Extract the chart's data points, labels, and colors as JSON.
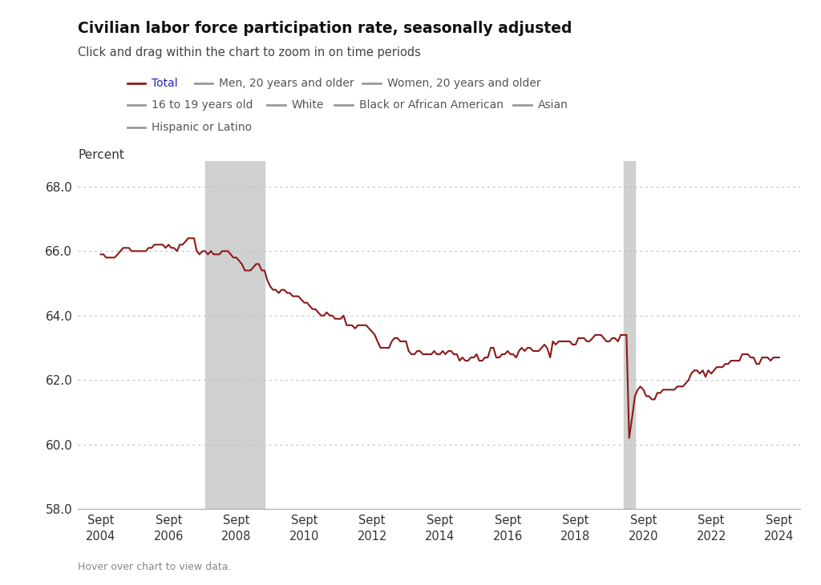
{
  "title": "Civilian labor force participation rate, seasonally adjusted",
  "subtitle": "Click and drag within the chart to zoom in on time periods",
  "ylabel": "Percent",
  "footer": "Hover over chart to view data.",
  "background_color": "#ffffff",
  "plot_bg_color": "#ffffff",
  "line_color": "#8B1A1A",
  "recession1_start": 2007.75,
  "recession1_end": 2009.5,
  "recession2_start": 2020.08,
  "recession2_end": 2020.42,
  "recession_color": "#d0d0d0",
  "ylim": [
    58.0,
    68.8
  ],
  "yticks": [
    58.0,
    60.0,
    62.0,
    64.0,
    66.0,
    68.0
  ],
  "xtick_labels": [
    "Sept\n2004",
    "Sept\n2006",
    "Sept\n2008",
    "Sept\n2010",
    "Sept\n2012",
    "Sept\n2014",
    "Sept\n2016",
    "Sept\n2018",
    "Sept\n2020",
    "Sept\n2022",
    "Sept\n2024"
  ],
  "xtick_positions": [
    2004.67,
    2006.67,
    2008.67,
    2010.67,
    2012.67,
    2014.67,
    2016.67,
    2018.67,
    2020.67,
    2022.67,
    2024.67
  ],
  "xlim": [
    2004.0,
    2025.3
  ],
  "legend_row1": [
    {
      "label": "Total",
      "color": "#8B1A1A",
      "label_color": "#2222bb"
    },
    {
      "label": "Men, 20 years and older",
      "color": "#999999",
      "label_color": "#555555"
    },
    {
      "label": "Women, 20 years and older",
      "color": "#999999",
      "label_color": "#555555"
    }
  ],
  "legend_row2": [
    {
      "label": "16 to 19 years old",
      "color": "#999999",
      "label_color": "#555555"
    },
    {
      "label": "White",
      "color": "#999999",
      "label_color": "#555555"
    },
    {
      "label": "Black or African American",
      "color": "#999999",
      "label_color": "#555555"
    },
    {
      "label": "Asian",
      "color": "#999999",
      "label_color": "#555555"
    }
  ],
  "legend_row3": [
    {
      "label": "Hispanic or Latino",
      "color": "#999999",
      "label_color": "#555555"
    }
  ],
  "data": {
    "dates": [
      2004.67,
      2004.75,
      2004.83,
      2004.92,
      2005.0,
      2005.08,
      2005.17,
      2005.25,
      2005.33,
      2005.42,
      2005.5,
      2005.58,
      2005.67,
      2005.75,
      2005.83,
      2005.92,
      2006.0,
      2006.08,
      2006.17,
      2006.25,
      2006.33,
      2006.42,
      2006.5,
      2006.58,
      2006.67,
      2006.75,
      2006.83,
      2006.92,
      2007.0,
      2007.08,
      2007.17,
      2007.25,
      2007.33,
      2007.42,
      2007.5,
      2007.58,
      2007.67,
      2007.75,
      2007.83,
      2007.92,
      2008.0,
      2008.08,
      2008.17,
      2008.25,
      2008.33,
      2008.42,
      2008.5,
      2008.58,
      2008.67,
      2008.75,
      2008.83,
      2008.92,
      2009.0,
      2009.08,
      2009.17,
      2009.25,
      2009.33,
      2009.42,
      2009.5,
      2009.58,
      2009.67,
      2009.75,
      2009.83,
      2009.92,
      2010.0,
      2010.08,
      2010.17,
      2010.25,
      2010.33,
      2010.42,
      2010.5,
      2010.58,
      2010.67,
      2010.75,
      2010.83,
      2010.92,
      2011.0,
      2011.08,
      2011.17,
      2011.25,
      2011.33,
      2011.42,
      2011.5,
      2011.58,
      2011.67,
      2011.75,
      2011.83,
      2011.92,
      2012.0,
      2012.08,
      2012.17,
      2012.25,
      2012.33,
      2012.42,
      2012.5,
      2012.58,
      2012.67,
      2012.75,
      2012.83,
      2012.92,
      2013.0,
      2013.08,
      2013.17,
      2013.25,
      2013.33,
      2013.42,
      2013.5,
      2013.58,
      2013.67,
      2013.75,
      2013.83,
      2013.92,
      2014.0,
      2014.08,
      2014.17,
      2014.25,
      2014.33,
      2014.42,
      2014.5,
      2014.58,
      2014.67,
      2014.75,
      2014.83,
      2014.92,
      2015.0,
      2015.08,
      2015.17,
      2015.25,
      2015.33,
      2015.42,
      2015.5,
      2015.58,
      2015.67,
      2015.75,
      2015.83,
      2015.92,
      2016.0,
      2016.08,
      2016.17,
      2016.25,
      2016.33,
      2016.42,
      2016.5,
      2016.58,
      2016.67,
      2016.75,
      2016.83,
      2016.92,
      2017.0,
      2017.08,
      2017.17,
      2017.25,
      2017.33,
      2017.42,
      2017.5,
      2017.58,
      2017.67,
      2017.75,
      2017.83,
      2017.92,
      2018.0,
      2018.08,
      2018.17,
      2018.25,
      2018.33,
      2018.42,
      2018.5,
      2018.58,
      2018.67,
      2018.75,
      2018.83,
      2018.92,
      2019.0,
      2019.08,
      2019.17,
      2019.25,
      2019.33,
      2019.42,
      2019.5,
      2019.58,
      2019.67,
      2019.75,
      2019.83,
      2019.92,
      2020.0,
      2020.08,
      2020.17,
      2020.25,
      2020.33,
      2020.42,
      2020.5,
      2020.58,
      2020.67,
      2020.75,
      2020.83,
      2020.92,
      2021.0,
      2021.08,
      2021.17,
      2021.25,
      2021.33,
      2021.42,
      2021.5,
      2021.58,
      2021.67,
      2021.75,
      2021.83,
      2021.92,
      2022.0,
      2022.08,
      2022.17,
      2022.25,
      2022.33,
      2022.42,
      2022.5,
      2022.58,
      2022.67,
      2022.75,
      2022.83,
      2022.92,
      2023.0,
      2023.08,
      2023.17,
      2023.25,
      2023.33,
      2023.42,
      2023.5,
      2023.58,
      2023.67,
      2023.75,
      2023.83,
      2023.92,
      2024.0,
      2024.08,
      2024.17,
      2024.25,
      2024.33,
      2024.42,
      2024.5,
      2024.67
    ],
    "values": [
      65.9,
      65.9,
      65.8,
      65.8,
      65.8,
      65.8,
      65.9,
      66.0,
      66.1,
      66.1,
      66.1,
      66.0,
      66.0,
      66.0,
      66.0,
      66.0,
      66.0,
      66.1,
      66.1,
      66.2,
      66.2,
      66.2,
      66.2,
      66.1,
      66.2,
      66.1,
      66.1,
      66.0,
      66.2,
      66.2,
      66.3,
      66.4,
      66.4,
      66.4,
      66.0,
      65.9,
      66.0,
      66.0,
      65.9,
      66.0,
      65.9,
      65.9,
      65.9,
      66.0,
      66.0,
      66.0,
      65.9,
      65.8,
      65.8,
      65.7,
      65.6,
      65.4,
      65.4,
      65.4,
      65.5,
      65.6,
      65.6,
      65.4,
      65.4,
      65.1,
      64.9,
      64.8,
      64.8,
      64.7,
      64.8,
      64.8,
      64.7,
      64.7,
      64.6,
      64.6,
      64.6,
      64.5,
      64.4,
      64.4,
      64.3,
      64.2,
      64.2,
      64.1,
      64.0,
      64.0,
      64.1,
      64.0,
      64.0,
      63.9,
      63.9,
      63.9,
      64.0,
      63.7,
      63.7,
      63.7,
      63.6,
      63.7,
      63.7,
      63.7,
      63.7,
      63.6,
      63.5,
      63.4,
      63.2,
      63.0,
      63.0,
      63.0,
      63.0,
      63.2,
      63.3,
      63.3,
      63.2,
      63.2,
      63.2,
      62.9,
      62.8,
      62.8,
      62.9,
      62.9,
      62.8,
      62.8,
      62.8,
      62.8,
      62.9,
      62.8,
      62.8,
      62.9,
      62.8,
      62.9,
      62.9,
      62.8,
      62.8,
      62.6,
      62.7,
      62.6,
      62.6,
      62.7,
      62.7,
      62.8,
      62.6,
      62.6,
      62.7,
      62.7,
      63.0,
      63.0,
      62.7,
      62.7,
      62.8,
      62.8,
      62.9,
      62.8,
      62.8,
      62.7,
      62.9,
      63.0,
      62.9,
      63.0,
      63.0,
      62.9,
      62.9,
      62.9,
      63.0,
      63.1,
      63.0,
      62.7,
      63.2,
      63.1,
      63.2,
      63.2,
      63.2,
      63.2,
      63.2,
      63.1,
      63.1,
      63.3,
      63.3,
      63.3,
      63.2,
      63.2,
      63.3,
      63.4,
      63.4,
      63.4,
      63.3,
      63.2,
      63.2,
      63.3,
      63.3,
      63.2,
      63.4,
      63.4,
      63.4,
      60.2,
      60.8,
      61.5,
      61.7,
      61.8,
      61.7,
      61.5,
      61.5,
      61.4,
      61.4,
      61.6,
      61.6,
      61.7,
      61.7,
      61.7,
      61.7,
      61.7,
      61.8,
      61.8,
      61.8,
      61.9,
      62.0,
      62.2,
      62.3,
      62.3,
      62.2,
      62.3,
      62.1,
      62.3,
      62.2,
      62.3,
      62.4,
      62.4,
      62.4,
      62.5,
      62.5,
      62.6,
      62.6,
      62.6,
      62.6,
      62.8,
      62.8,
      62.8,
      62.7,
      62.7,
      62.5,
      62.5,
      62.7,
      62.7,
      62.7,
      62.6,
      62.7,
      62.7
    ]
  }
}
